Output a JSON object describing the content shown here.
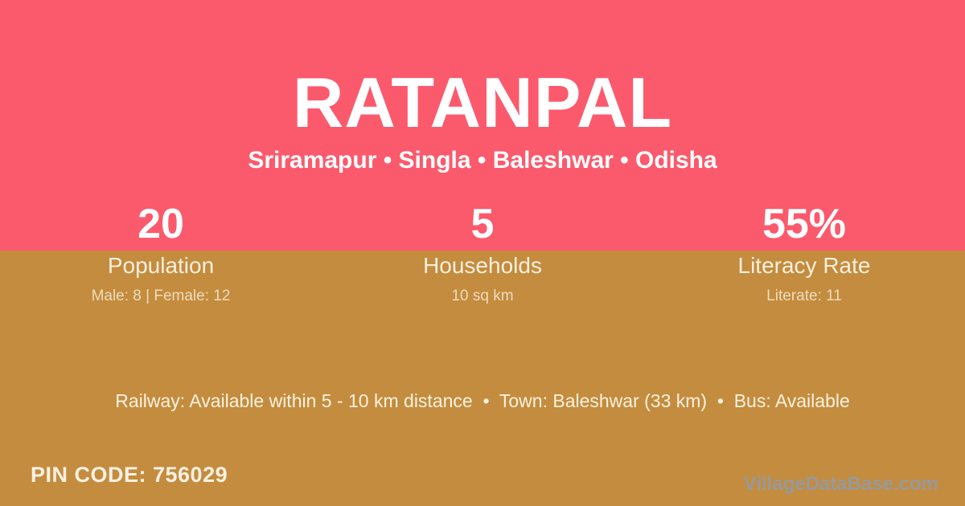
{
  "theme": {
    "top_band_color": "#FB5A6C",
    "bottom_band_color": "#C48C3E",
    "heading_text_color": "#FFFFFF",
    "label_text_color": "#F8EFDF",
    "muted_text_color": "#EDDCBE",
    "watermark_color": "#97999B"
  },
  "header": {
    "title": "RATANPAL",
    "subtitle": "Sriramapur • Singla • Baleshwar • Odisha"
  },
  "stats": [
    {
      "value": "20",
      "label": "Population",
      "detail": "Male: 8 | Female: 12"
    },
    {
      "value": "5",
      "label": "Households",
      "detail": "10 sq km"
    },
    {
      "value": "55%",
      "label": "Literacy Rate",
      "detail": "Literate: 11"
    }
  ],
  "info_line": "Railway: Available within 5 - 10 km distance  •  Town: Baleshwar (33 km)  •  Bus: Available",
  "footer": {
    "pin_code": "PIN CODE: 756029",
    "watermark": "VillageDataBase.com"
  }
}
